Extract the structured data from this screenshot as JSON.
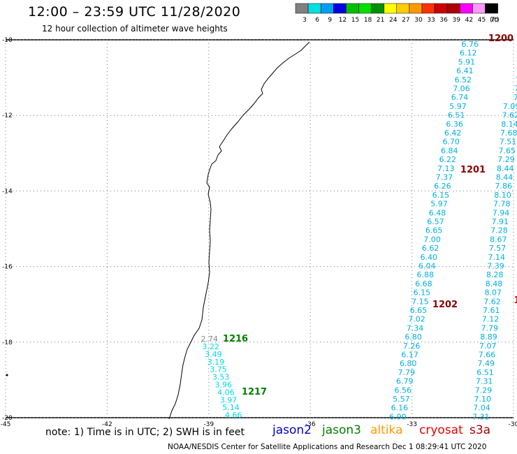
{
  "header": {
    "title": "12:00 – 23:59 UTC 11/28/2020",
    "subtitle": "12 hour collection of altimeter wave heights"
  },
  "legend": {
    "unit": "(ft)",
    "bins": [
      {
        "label": "3",
        "color": "#808080"
      },
      {
        "label": "6",
        "color": "#00e0e0"
      },
      {
        "label": "9",
        "color": "#00a0f0"
      },
      {
        "label": "12",
        "color": "#0000e0"
      },
      {
        "label": "15",
        "color": "#00c000"
      },
      {
        "label": "18",
        "color": "#00e000"
      },
      {
        "label": "21",
        "color": "#009000"
      },
      {
        "label": "24",
        "color": "#ffff00"
      },
      {
        "label": "27",
        "color": "#ffcc00"
      },
      {
        "label": "30",
        "color": "#ff9900"
      },
      {
        "label": "33",
        "color": "#ff3300"
      },
      {
        "label": "36",
        "color": "#cc0000"
      },
      {
        "label": "39",
        "color": "#aa0000"
      },
      {
        "label": "42",
        "color": "#ff00ff"
      },
      {
        "label": "45",
        "color": "#ff99ff"
      },
      {
        "label": "70",
        "color": "#000000"
      }
    ]
  },
  "map": {
    "lat_labels": [
      "-10",
      "-12",
      "-14",
      "-16",
      "-18",
      "-20"
    ],
    "lon_labels": [
      "-45",
      "-42",
      "-39",
      "-36",
      "-33",
      "-30"
    ],
    "lat_range": [
      -20,
      -10
    ],
    "lon_range": [
      -45,
      -30
    ]
  },
  "tracks": [
    {
      "color": "#00b0e0",
      "values": [
        "6.76",
        "6.12",
        "5.91",
        "6.41",
        "6.52",
        "7.06",
        "6.74",
        "5.97",
        "6.51",
        "6.36",
        "6.42",
        "6.70",
        "6.84",
        "6.22",
        "7.13",
        "7.37",
        "6.26",
        "6.15",
        "5.97",
        "6.48",
        "6.57",
        "6.65",
        "7.00",
        "6.62",
        "6.40",
        "6.04",
        "6.88",
        "6.68",
        "6.15",
        "7.15",
        "6.65",
        "7.02",
        "7.34",
        "6.80",
        "7.26",
        "6.17",
        "6.80",
        "7.79",
        "6.79",
        "6.56",
        "5.57",
        "6.16",
        "6.90"
      ]
    },
    {
      "color": "#00b0e0",
      "values": [
        "6.",
        "7.",
        "7.",
        "7.",
        "7.",
        "7.",
        "7.",
        "7.09",
        "7.62",
        "8.14",
        "7.68",
        "7.51",
        "7.65",
        "7.29",
        "8.44",
        "8.44",
        "7.86",
        "8.10",
        "7.78",
        "7.94",
        "7.91",
        "7.28",
        "8.67",
        "7.57",
        "7.14",
        "7.39",
        "8.28",
        "8.48",
        "8.07",
        "7.62",
        "7.61",
        "7.12",
        "7.79",
        "8.89",
        "7.07",
        "7.66",
        "7.49",
        "6.51",
        "7.31",
        "7.29",
        "7.10",
        "7.04",
        "7.31"
      ]
    },
    {
      "color": "#00d8e8",
      "values": [
        "3.22",
        "3.49",
        "3.19",
        "3.75",
        "3.53",
        "3.96",
        "4.06",
        "3.97",
        "5.14",
        "4.66"
      ]
    }
  ],
  "gray_value": "2.74",
  "time_labels": [
    {
      "text": "1200",
      "color": "#8b0000"
    },
    {
      "text": "1201",
      "color": "#8b0000"
    },
    {
      "text": "1202",
      "color": "#8b0000"
    },
    {
      "text": "1",
      "color": "#cc0000"
    },
    {
      "text": "1216",
      "color": "#008000"
    },
    {
      "text": "1217",
      "color": "#008000"
    }
  ],
  "note": "note:  1) Time is in UTC;  2) SWH is in feet",
  "satellites": [
    {
      "name": "jason2",
      "color": "#0000cc"
    },
    {
      "name": "jason3",
      "color": "#008000"
    },
    {
      "name": "altika",
      "color": "#ff9900"
    },
    {
      "name": "cryosat",
      "color": "#ee0000"
    },
    {
      "name": "s3a",
      "color": "#aa0000"
    }
  ],
  "footer": "NOAA/NESDIS Center for Satellite Applications and Research    Dec  1 08:29:41 UTC 2020"
}
